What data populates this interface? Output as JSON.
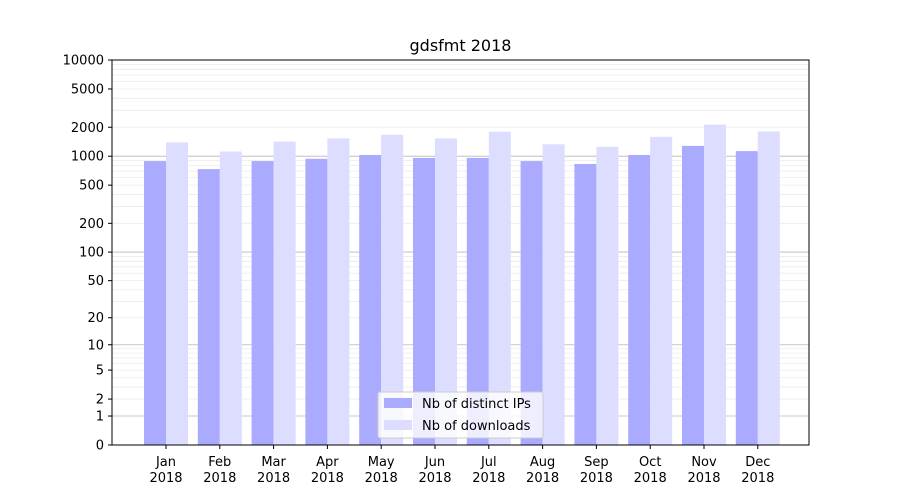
{
  "chart_data": {
    "type": "bar",
    "title": "gdsfmt 2018",
    "xlabel": "",
    "ylabel": "",
    "y_scale": "log1p",
    "ylim": [
      0,
      10000
    ],
    "yticks": [
      0,
      1,
      2,
      5,
      10,
      20,
      50,
      100,
      200,
      500,
      1000,
      2000,
      5000,
      10000
    ],
    "grid": "horizontal",
    "legend_position": "bottom-center",
    "categories": [
      {
        "month": "Jan",
        "year": "2018"
      },
      {
        "month": "Feb",
        "year": "2018"
      },
      {
        "month": "Mar",
        "year": "2018"
      },
      {
        "month": "Apr",
        "year": "2018"
      },
      {
        "month": "May",
        "year": "2018"
      },
      {
        "month": "Jun",
        "year": "2018"
      },
      {
        "month": "Jul",
        "year": "2018"
      },
      {
        "month": "Aug",
        "year": "2018"
      },
      {
        "month": "Sep",
        "year": "2018"
      },
      {
        "month": "Oct",
        "year": "2018"
      },
      {
        "month": "Nov",
        "year": "2018"
      },
      {
        "month": "Dec",
        "year": "2018"
      }
    ],
    "series": [
      {
        "name": "Nb of distinct IPs",
        "color": "#aaaaff",
        "values": [
          890,
          735,
          890,
          940,
          1030,
          960,
          960,
          890,
          830,
          1030,
          1280,
          1130
        ]
      },
      {
        "name": "Nb of downloads",
        "color": "#ddddff",
        "values": [
          1390,
          1120,
          1420,
          1530,
          1670,
          1530,
          1800,
          1330,
          1250,
          1590,
          2130,
          1810
        ]
      }
    ]
  }
}
